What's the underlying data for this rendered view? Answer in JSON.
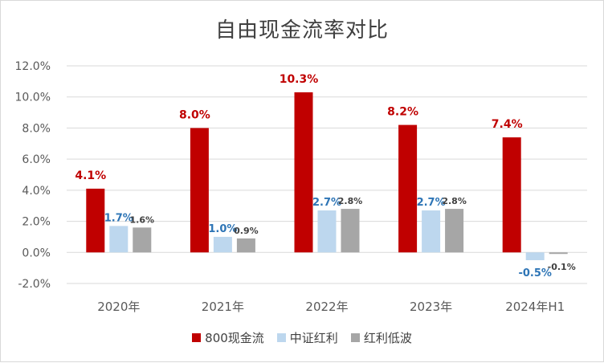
{
  "colors": {
    "series_800": "#c00000",
    "series_csi": "#bdd7ee",
    "series_lowvol": "#a6a6a6",
    "label_800": "#c00000",
    "label_csi": "#2e75b6",
    "label_lowvol": "#404040",
    "grid": "#d9d9d9",
    "axis_text": "#595959"
  },
  "chart_data": {
    "type": "bar",
    "title": "自由现金流率对比",
    "categories": [
      "2020年",
      "2021年",
      "2022年",
      "2023年",
      "2024年H1"
    ],
    "series": [
      {
        "name": "800现金流",
        "values": [
          4.1,
          8.0,
          10.3,
          8.2,
          7.4
        ],
        "labels": [
          "4.1%",
          "8.0%",
          "10.3%",
          "8.2%",
          "7.4%"
        ]
      },
      {
        "name": "中证红利",
        "values": [
          1.7,
          1.0,
          2.7,
          2.7,
          -0.5
        ],
        "labels": [
          "1.7%",
          "1.0%",
          "2.7%",
          "2.7%",
          "-0.5%"
        ]
      },
      {
        "name": "红利低波",
        "values": [
          1.6,
          0.9,
          2.8,
          2.8,
          -0.1
        ],
        "labels": [
          "1.6%",
          "0.9%",
          "2.8%",
          "2.8%",
          "-0.1%"
        ]
      }
    ],
    "yticks": [
      "-2.0%",
      "0.0%",
      "2.0%",
      "4.0%",
      "6.0%",
      "8.0%",
      "10.0%",
      "12.0%"
    ],
    "ylim": [
      -2,
      12
    ],
    "grid": true,
    "legend_position": "bottom"
  }
}
